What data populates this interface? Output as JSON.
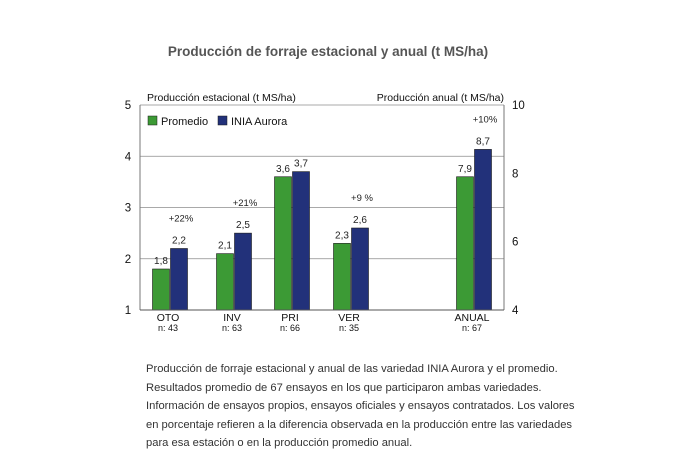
{
  "chart_data": {
    "type": "bar",
    "title": "Producción de forraje estacional y anual (t MS/ha)",
    "left_axis_label": "Producción estacional (t MS/ha)",
    "right_axis_label": "Producción anual (t MS/ha)",
    "left_ylim": [
      1,
      5
    ],
    "left_ticks": [
      "1",
      "2",
      "3",
      "4",
      "5"
    ],
    "right_ylim": [
      4,
      10
    ],
    "right_ticks": [
      "4",
      "6",
      "8",
      "10"
    ],
    "grid": true,
    "legend_position": "top-left",
    "series": [
      {
        "name": "Promedio",
        "color": "#3c9a35"
      },
      {
        "name": "INIA Aurora",
        "color": "#22317a"
      }
    ],
    "groups": [
      {
        "label": "OTO",
        "n": "n: 43",
        "axis": "left",
        "values": [
          1.8,
          2.2
        ],
        "value_labels": [
          "1,8",
          "2,2"
        ],
        "diff": "+22%"
      },
      {
        "label": "INV",
        "n": "n: 63",
        "axis": "left",
        "values": [
          2.1,
          2.5
        ],
        "value_labels": [
          "2,1",
          "2,5"
        ],
        "diff": "+21%"
      },
      {
        "label": "PRI",
        "n": "n: 66",
        "axis": "left",
        "values": [
          3.6,
          3.7
        ],
        "value_labels": [
          "3,6",
          "3,7"
        ],
        "diff": ""
      },
      {
        "label": "VER",
        "n": "n: 35",
        "axis": "left",
        "values": [
          2.3,
          2.6
        ],
        "value_labels": [
          "2,3",
          "2,6"
        ],
        "diff": "+9 %"
      },
      {
        "label": "ANUAL",
        "n": "n: 67",
        "axis": "right",
        "values": [
          7.9,
          8.7
        ],
        "value_labels": [
          "7,9",
          "8,7"
        ],
        "diff": "+10%"
      }
    ]
  },
  "caption_lines": [
    "Producción de forraje estacional y anual de las variedad INIA Aurora y el promedio.",
    "Resultados promedio de 67 ensayos en los que participaron ambas variedades.",
    "Información de ensayos propios, ensayos oficiales y ensayos contratados. Los valores",
    "en porcentaje refieren a la diferencia observada en la producción entre las variedades",
    "para esa estación o en la producción promedio anual."
  ]
}
